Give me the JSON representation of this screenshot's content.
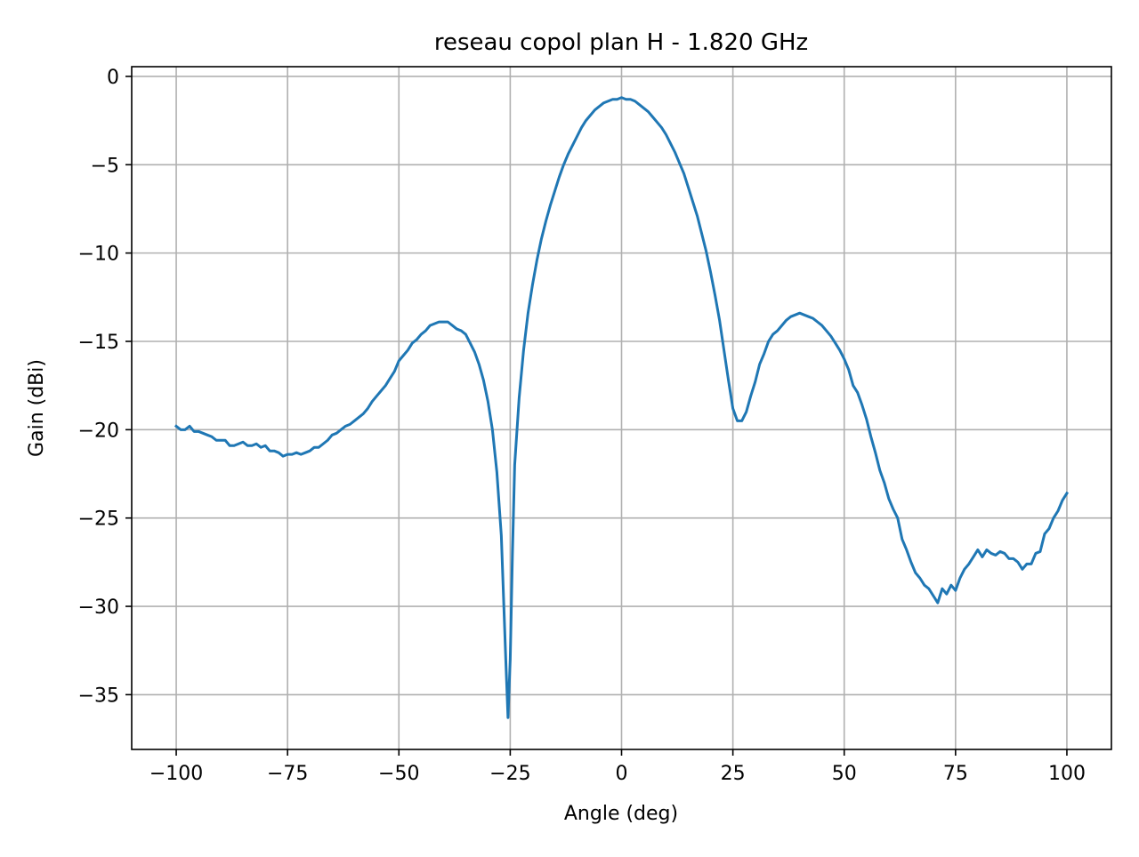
{
  "chart_data": {
    "type": "line",
    "title": "reseau copol plan H - 1.820 GHz",
    "xlabel": "Angle (deg)",
    "ylabel": "Gain (dBi)",
    "xlim": [
      -110,
      110
    ],
    "ylim": [
      -38.1,
      0.55
    ],
    "xticks": [
      -100,
      -75,
      -50,
      -25,
      0,
      25,
      50,
      75,
      100
    ],
    "xtick_labels": [
      "−100",
      "−75",
      "−50",
      "−25",
      "0",
      "25",
      "50",
      "75",
      "100"
    ],
    "yticks": [
      0,
      -5,
      -10,
      -15,
      -20,
      -25,
      -30,
      -35
    ],
    "ytick_labels": [
      "0",
      "−5",
      "−10",
      "−15",
      "−20",
      "−25",
      "−30",
      "−35"
    ],
    "grid": true,
    "series": [
      {
        "color": "#1f77b4",
        "points": [
          [
            -100,
            -19.8
          ],
          [
            -99,
            -20.0
          ],
          [
            -98,
            -20.0
          ],
          [
            -97,
            -19.8
          ],
          [
            -96,
            -20.1
          ],
          [
            -95,
            -20.1
          ],
          [
            -94,
            -20.2
          ],
          [
            -93,
            -20.3
          ],
          [
            -92,
            -20.4
          ],
          [
            -91,
            -20.6
          ],
          [
            -90,
            -20.6
          ],
          [
            -89,
            -20.6
          ],
          [
            -88,
            -20.9
          ],
          [
            -87,
            -20.9
          ],
          [
            -86,
            -20.8
          ],
          [
            -85,
            -20.7
          ],
          [
            -84,
            -20.9
          ],
          [
            -83,
            -20.9
          ],
          [
            -82,
            -20.8
          ],
          [
            -81,
            -21.0
          ],
          [
            -80,
            -20.9
          ],
          [
            -79,
            -21.2
          ],
          [
            -78,
            -21.2
          ],
          [
            -77,
            -21.3
          ],
          [
            -76,
            -21.5
          ],
          [
            -75,
            -21.4
          ],
          [
            -74,
            -21.4
          ],
          [
            -73,
            -21.3
          ],
          [
            -72,
            -21.4
          ],
          [
            -71,
            -21.3
          ],
          [
            -70,
            -21.2
          ],
          [
            -69,
            -21.0
          ],
          [
            -68,
            -21.0
          ],
          [
            -67,
            -20.8
          ],
          [
            -66,
            -20.6
          ],
          [
            -65,
            -20.3
          ],
          [
            -64,
            -20.2
          ],
          [
            -63,
            -20.0
          ],
          [
            -62,
            -19.8
          ],
          [
            -61,
            -19.7
          ],
          [
            -60,
            -19.5
          ],
          [
            -59,
            -19.3
          ],
          [
            -58,
            -19.1
          ],
          [
            -57,
            -18.8
          ],
          [
            -56,
            -18.4
          ],
          [
            -55,
            -18.1
          ],
          [
            -54,
            -17.8
          ],
          [
            -53,
            -17.5
          ],
          [
            -52,
            -17.1
          ],
          [
            -51,
            -16.7
          ],
          [
            -50,
            -16.1
          ],
          [
            -49,
            -15.8
          ],
          [
            -48,
            -15.5
          ],
          [
            -47,
            -15.1
          ],
          [
            -46,
            -14.9
          ],
          [
            -45,
            -14.6
          ],
          [
            -44,
            -14.4
          ],
          [
            -43,
            -14.1
          ],
          [
            -42,
            -14.0
          ],
          [
            -41,
            -13.9
          ],
          [
            -40,
            -13.9
          ],
          [
            -39,
            -13.9
          ],
          [
            -38,
            -14.1
          ],
          [
            -37,
            -14.3
          ],
          [
            -36,
            -14.4
          ],
          [
            -35,
            -14.6
          ],
          [
            -34,
            -15.1
          ],
          [
            -33,
            -15.6
          ],
          [
            -32,
            -16.3
          ],
          [
            -31,
            -17.2
          ],
          [
            -30,
            -18.4
          ],
          [
            -29,
            -20.0
          ],
          [
            -28,
            -22.4
          ],
          [
            -27,
            -26.0
          ],
          [
            -26.5,
            -29.5
          ],
          [
            -26,
            -33.0
          ],
          [
            -25.5,
            -36.3
          ],
          [
            -25,
            -33.0
          ],
          [
            -24.5,
            -27.0
          ],
          [
            -24,
            -22.0
          ],
          [
            -23,
            -18.2
          ],
          [
            -22,
            -15.5
          ],
          [
            -21,
            -13.4
          ],
          [
            -20,
            -11.8
          ],
          [
            -19,
            -10.4
          ],
          [
            -18,
            -9.2
          ],
          [
            -17,
            -8.2
          ],
          [
            -16,
            -7.3
          ],
          [
            -15,
            -6.5
          ],
          [
            -14,
            -5.7
          ],
          [
            -13,
            -5.0
          ],
          [
            -12,
            -4.4
          ],
          [
            -11,
            -3.9
          ],
          [
            -10,
            -3.4
          ],
          [
            -9,
            -2.9
          ],
          [
            -8,
            -2.5
          ],
          [
            -7,
            -2.2
          ],
          [
            -6,
            -1.9
          ],
          [
            -5,
            -1.7
          ],
          [
            -4,
            -1.5
          ],
          [
            -3,
            -1.4
          ],
          [
            -2,
            -1.3
          ],
          [
            -1,
            -1.3
          ],
          [
            0,
            -1.2
          ],
          [
            1,
            -1.3
          ],
          [
            2,
            -1.3
          ],
          [
            3,
            -1.4
          ],
          [
            4,
            -1.6
          ],
          [
            5,
            -1.8
          ],
          [
            6,
            -2.0
          ],
          [
            7,
            -2.3
          ],
          [
            8,
            -2.6
          ],
          [
            9,
            -2.9
          ],
          [
            10,
            -3.3
          ],
          [
            11,
            -3.8
          ],
          [
            12,
            -4.3
          ],
          [
            13,
            -4.9
          ],
          [
            14,
            -5.5
          ],
          [
            15,
            -6.3
          ],
          [
            16,
            -7.1
          ],
          [
            17,
            -7.9
          ],
          [
            18,
            -8.9
          ],
          [
            19,
            -9.9
          ],
          [
            20,
            -11.1
          ],
          [
            21,
            -12.4
          ],
          [
            22,
            -13.8
          ],
          [
            23,
            -15.5
          ],
          [
            24,
            -17.2
          ],
          [
            25,
            -18.8
          ],
          [
            26,
            -19.5
          ],
          [
            27,
            -19.5
          ],
          [
            28,
            -19.0
          ],
          [
            29,
            -18.1
          ],
          [
            30,
            -17.3
          ],
          [
            31,
            -16.3
          ],
          [
            32,
            -15.7
          ],
          [
            33,
            -15.0
          ],
          [
            34,
            -14.6
          ],
          [
            35,
            -14.4
          ],
          [
            36,
            -14.1
          ],
          [
            37,
            -13.8
          ],
          [
            38,
            -13.6
          ],
          [
            39,
            -13.5
          ],
          [
            40,
            -13.4
          ],
          [
            41,
            -13.5
          ],
          [
            42,
            -13.6
          ],
          [
            43,
            -13.7
          ],
          [
            44,
            -13.9
          ],
          [
            45,
            -14.1
          ],
          [
            46,
            -14.4
          ],
          [
            47,
            -14.7
          ],
          [
            48,
            -15.1
          ],
          [
            49,
            -15.5
          ],
          [
            50,
            -16.0
          ],
          [
            51,
            -16.6
          ],
          [
            52,
            -17.5
          ],
          [
            53,
            -17.9
          ],
          [
            54,
            -18.6
          ],
          [
            55,
            -19.4
          ],
          [
            56,
            -20.4
          ],
          [
            57,
            -21.3
          ],
          [
            58,
            -22.3
          ],
          [
            59,
            -23.0
          ],
          [
            60,
            -23.9
          ],
          [
            61,
            -24.5
          ],
          [
            62,
            -25.0
          ],
          [
            63,
            -26.2
          ],
          [
            64,
            -26.8
          ],
          [
            65,
            -27.5
          ],
          [
            66,
            -28.1
          ],
          [
            67,
            -28.4
          ],
          [
            68,
            -28.8
          ],
          [
            69,
            -29.0
          ],
          [
            70,
            -29.4
          ],
          [
            71,
            -29.8
          ],
          [
            72,
            -29.0
          ],
          [
            73,
            -29.3
          ],
          [
            74,
            -28.8
          ],
          [
            75,
            -29.1
          ],
          [
            76,
            -28.4
          ],
          [
            77,
            -27.9
          ],
          [
            78,
            -27.6
          ],
          [
            79,
            -27.2
          ],
          [
            80,
            -26.8
          ],
          [
            81,
            -27.2
          ],
          [
            82,
            -26.8
          ],
          [
            83,
            -27.0
          ],
          [
            84,
            -27.1
          ],
          [
            85,
            -26.9
          ],
          [
            86,
            -27.0
          ],
          [
            87,
            -27.3
          ],
          [
            88,
            -27.3
          ],
          [
            89,
            -27.5
          ],
          [
            90,
            -27.9
          ],
          [
            91,
            -27.6
          ],
          [
            92,
            -27.6
          ],
          [
            93,
            -27.0
          ],
          [
            94,
            -26.9
          ],
          [
            95,
            -25.9
          ],
          [
            96,
            -25.6
          ],
          [
            97,
            -25.0
          ],
          [
            98,
            -24.6
          ],
          [
            99,
            -24.0
          ],
          [
            100,
            -23.6
          ]
        ]
      }
    ]
  }
}
